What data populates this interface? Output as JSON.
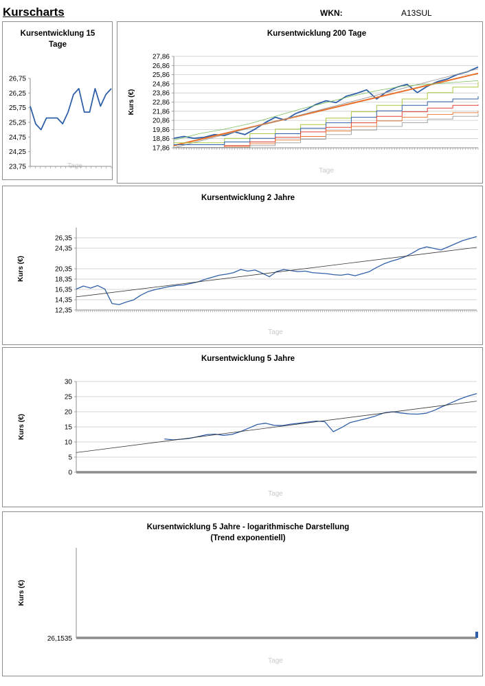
{
  "header": {
    "title": "Kurscharts",
    "wkn_label": "WKN:",
    "wkn_value": "A13SUL"
  },
  "colors": {
    "series": "#2f5fa8",
    "trend": "#333333",
    "grid": "#c8c8c8",
    "baseline": "#8c8c8c",
    "orange": "#e8702a",
    "red": "#e04030",
    "yellowgreen": "#a8c840",
    "green": "#7bbf5a",
    "grey": "#9a9a9a",
    "purple": "#8060a0"
  },
  "chart_data": [
    {
      "id": "c15",
      "type": "line",
      "title": "Kursentwicklung 15 Tage",
      "title_lines": [
        "Kursentwicklung 15",
        "Tage"
      ],
      "xlabel": "Tage",
      "ylabel": "",
      "ylim": [
        23.75,
        26.75
      ],
      "yticks": [
        "26,75",
        "26,25",
        "25,75",
        "25,25",
        "24,75",
        "24,25",
        "23,75"
      ],
      "series": [
        {
          "values": [
            25.8,
            25.2,
            25.0,
            25.4,
            25.4,
            25.4,
            25.2,
            25.6,
            26.2,
            26.4,
            25.6,
            25.6,
            26.4,
            25.8,
            26.2,
            26.4
          ]
        }
      ]
    },
    {
      "id": "c200",
      "type": "line",
      "title": "Kursentwicklung 200 Tage",
      "xlabel": "Tage",
      "ylabel": "Kurs (€)",
      "ylim": [
        17.86,
        27.86
      ],
      "yticks": [
        "27,86",
        "26,86",
        "25,86",
        "24,86",
        "23,86",
        "22,86",
        "21,86",
        "20,86",
        "19,86",
        "18,86",
        "17,86"
      ],
      "series": [
        {
          "values": [
            18.9,
            19.1,
            18.9,
            19.0,
            19.3,
            19.2,
            19.6,
            19.3,
            19.9,
            20.6,
            21.2,
            20.9,
            21.6,
            22.0,
            22.6,
            23.0,
            22.8,
            23.5,
            23.8,
            24.2,
            23.2,
            24.0,
            24.5,
            24.8,
            23.9,
            24.6,
            25.1,
            25.4,
            25.9,
            26.2,
            26.7
          ]
        },
        {
          "values": [
            18.1,
            26.0
          ]
        },
        {
          "values": [
            17.86,
            26.5
          ]
        },
        {
          "values": [
            18.4,
            18.4,
            18.9,
            19.4,
            19.9,
            20.4,
            21.1,
            21.8,
            22.5,
            23.2,
            23.9,
            24.5,
            25.1
          ]
        },
        {
          "values": [
            18.2,
            18.2,
            18.5,
            18.9,
            19.4,
            20.0,
            20.6,
            21.2,
            21.9,
            22.5,
            22.9,
            23.2,
            23.5
          ]
        },
        {
          "values": [
            17.9,
            17.9,
            18.1,
            18.5,
            19.0,
            19.6,
            20.1,
            20.6,
            21.3,
            21.8,
            22.2,
            22.5,
            22.6
          ]
        },
        {
          "values": [
            17.9,
            17.9,
            18.0,
            18.3,
            18.7,
            19.1,
            19.7,
            20.2,
            20.8,
            21.2,
            21.5,
            21.7,
            21.9
          ]
        },
        {
          "values": [
            17.9,
            17.9,
            17.9,
            18.1,
            18.4,
            18.8,
            19.3,
            19.8,
            20.2,
            20.6,
            21.0,
            21.3,
            21.6
          ]
        },
        {
          "values": [
            18.7,
            19.4,
            19.9,
            20.5,
            21.3,
            22.1,
            22.8,
            23.5,
            24.1,
            24.6,
            24.8,
            25.0,
            25.2
          ]
        }
      ]
    },
    {
      "id": "c2j",
      "type": "line",
      "title": "Kursentwicklung 2 Jahre",
      "xlabel": "Tage",
      "ylabel": "Kurs (€)",
      "ylim": [
        12.35,
        28.35
      ],
      "yticks": [
        "26,35",
        "24,35",
        "20,35",
        "18,35",
        "16,35",
        "14,35",
        "12,35"
      ],
      "ytick_values": [
        26.35,
        24.35,
        20.35,
        18.35,
        16.35,
        14.35,
        12.35
      ],
      "series": [
        {
          "values": [
            16.4,
            17.0,
            16.6,
            17.1,
            16.4,
            13.6,
            13.4,
            13.9,
            14.3,
            15.2,
            15.9,
            16.3,
            16.6,
            16.9,
            17.1,
            17.2,
            17.5,
            17.8,
            18.3,
            18.7,
            19.1,
            19.3,
            19.6,
            20.2,
            19.9,
            20.1,
            19.5,
            18.8,
            19.8,
            20.2,
            20.0,
            19.8,
            19.9,
            19.6,
            19.5,
            19.4,
            19.2,
            19.1,
            19.3,
            19.0,
            19.4,
            19.8,
            20.6,
            21.3,
            21.8,
            22.2,
            22.7,
            23.4,
            24.2,
            24.6,
            24.3,
            24.0,
            24.6,
            25.2,
            25.8,
            26.2,
            26.6
          ]
        },
        {
          "values": [
            14.9,
            24.5
          ]
        }
      ]
    },
    {
      "id": "c5j",
      "type": "line",
      "title": "Kursentwicklung 5 Jahre",
      "xlabel": "Tage",
      "ylabel": "Kurs (€)",
      "ylim": [
        0,
        30
      ],
      "yticks": [
        "30",
        "25",
        "20",
        "15",
        "10",
        "5",
        "0"
      ],
      "ytick_values": [
        30,
        25,
        20,
        15,
        10,
        5,
        0
      ],
      "series": [
        {
          "values": [
            11.0,
            10.7,
            10.9,
            11.2,
            11.8,
            12.4,
            12.6,
            12.2,
            12.5,
            13.4,
            14.6,
            15.8,
            16.2,
            15.5,
            15.4,
            15.9,
            16.2,
            16.6,
            16.9,
            16.7,
            13.4,
            14.8,
            16.4,
            17.1,
            17.8,
            18.6,
            19.6,
            20.0,
            19.6,
            19.3,
            19.2,
            19.5,
            20.5,
            21.8,
            23.0,
            24.2,
            25.2,
            26.0
          ]
        },
        {
          "values": [
            6.5,
            23.5
          ]
        }
      ]
    },
    {
      "id": "clog",
      "type": "line",
      "title": "Kursentwicklung 5 Jahre - logarithmische Darstellung (Trend exponentiell)",
      "title_lines": [
        "Kursentwicklung 5 Jahre - logarithmische Darstellung",
        "(Trend exponentiell)"
      ],
      "xlabel": "Tage",
      "ylabel": "Kurs (€)",
      "yticks": [
        "26,1535"
      ],
      "series": [
        {
          "values": [
            26.1535
          ]
        }
      ]
    }
  ]
}
